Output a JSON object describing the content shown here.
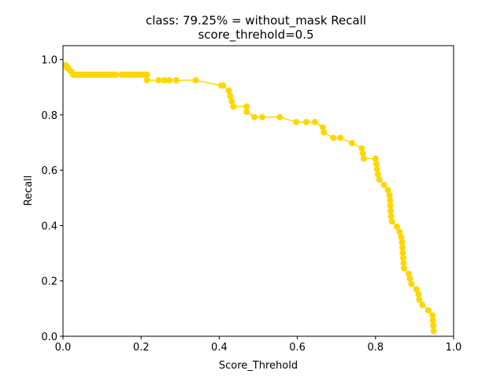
{
  "chart_data": {
    "type": "line",
    "title": "class: 79.25% = without_mask Recall",
    "subtitle": "score_threhold=0.5",
    "xlabel": "Score_Threhold",
    "ylabel": "Recall",
    "xlim": [
      0.0,
      1.0
    ],
    "ylim": [
      0.0,
      1.05
    ],
    "xticks": [
      "0.0",
      "0.2",
      "0.4",
      "0.6",
      "0.8",
      "1.0"
    ],
    "yticks": [
      "0.0",
      "0.2",
      "0.4",
      "0.6",
      "0.8",
      "1.0"
    ],
    "grid": false,
    "line_color": "#ffd700",
    "marker": "circle",
    "series": [
      {
        "x": [
          0.007,
          0.01,
          0.013,
          0.018,
          0.022,
          0.026,
          0.03,
          0.035,
          0.04,
          0.045,
          0.05,
          0.055,
          0.06,
          0.065,
          0.07,
          0.075,
          0.08,
          0.085,
          0.09,
          0.095,
          0.1,
          0.105,
          0.11,
          0.115,
          0.12,
          0.125,
          0.13,
          0.135,
          0.15,
          0.155,
          0.16,
          0.165,
          0.17,
          0.175,
          0.18,
          0.185,
          0.19,
          0.195,
          0.2,
          0.205,
          0.21,
          0.215,
          0.215,
          0.245,
          0.26,
          0.272,
          0.29,
          0.34,
          0.405,
          0.41,
          0.425,
          0.428,
          0.432,
          0.436,
          0.47,
          0.47,
          0.49,
          0.51,
          0.555,
          0.597,
          0.623,
          0.645,
          0.665,
          0.668,
          0.692,
          0.71,
          0.74,
          0.765,
          0.768,
          0.77,
          0.8,
          0.802,
          0.804,
          0.806,
          0.81,
          0.822,
          0.832,
          0.836,
          0.837,
          0.838,
          0.839,
          0.84,
          0.842,
          0.855,
          0.862,
          0.866,
          0.868,
          0.869,
          0.87,
          0.871,
          0.872,
          0.873,
          0.885,
          0.888,
          0.892,
          0.905,
          0.91,
          0.912,
          0.92,
          0.935,
          0.946,
          0.947,
          0.948,
          0.949
        ],
        "y": [
          0.98,
          0.97,
          0.97,
          0.96,
          0.955,
          0.945,
          0.945,
          0.945,
          0.945,
          0.945,
          0.945,
          0.945,
          0.945,
          0.945,
          0.945,
          0.945,
          0.945,
          0.945,
          0.945,
          0.945,
          0.945,
          0.945,
          0.945,
          0.945,
          0.945,
          0.945,
          0.945,
          0.945,
          0.945,
          0.945,
          0.945,
          0.945,
          0.945,
          0.945,
          0.945,
          0.945,
          0.945,
          0.945,
          0.945,
          0.945,
          0.945,
          0.945,
          0.925,
          0.925,
          0.925,
          0.925,
          0.925,
          0.925,
          0.906,
          0.906,
          0.887,
          0.868,
          0.849,
          0.83,
          0.83,
          0.811,
          0.792,
          0.792,
          0.792,
          0.774,
          0.774,
          0.774,
          0.755,
          0.736,
          0.717,
          0.717,
          0.698,
          0.679,
          0.66,
          0.642,
          0.642,
          0.623,
          0.604,
          0.585,
          0.566,
          0.547,
          0.528,
          0.509,
          0.491,
          0.472,
          0.453,
          0.434,
          0.415,
          0.396,
          0.377,
          0.358,
          0.34,
          0.321,
          0.302,
          0.283,
          0.264,
          0.245,
          0.226,
          0.208,
          0.189,
          0.17,
          0.151,
          0.132,
          0.113,
          0.094,
          0.075,
          0.057,
          0.038,
          0.019
        ]
      }
    ]
  }
}
